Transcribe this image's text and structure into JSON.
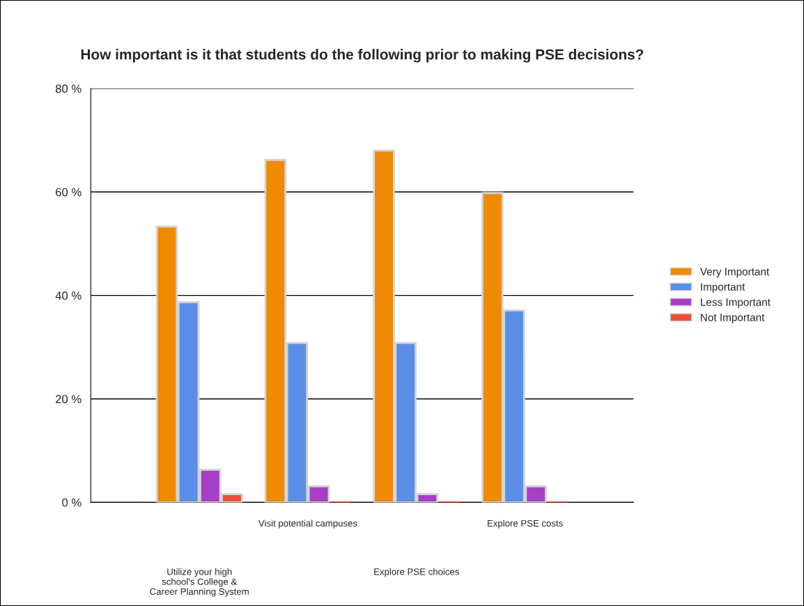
{
  "chart_data": {
    "type": "bar",
    "title": "How important is it that students do the following prior to making PSE decisions?",
    "categories": [
      "Utilize your high\nschool's College &\nCareer Planning System",
      "Visit potential campuses",
      "Explore PSE choices",
      "Explore PSE costs"
    ],
    "series": [
      {
        "name": "Very Important",
        "color": "#f08a00",
        "values": [
          53.3,
          66.2,
          68.0,
          59.8
        ]
      },
      {
        "name": "Important",
        "color": "#5b8ee6",
        "values": [
          38.7,
          30.8,
          30.8,
          37.1
        ]
      },
      {
        "name": "Less Important",
        "color": "#a53fc6",
        "values": [
          6.3,
          3.1,
          1.6,
          3.1
        ]
      },
      {
        "name": "Not Important",
        "color": "#e8503a",
        "values": [
          1.6,
          0,
          0,
          0
        ]
      }
    ],
    "ylim": [
      0,
      80
    ],
    "yticks": [
      {
        "value": 0,
        "label": "0 %"
      },
      {
        "value": 20,
        "label": "20 %"
      },
      {
        "value": 40,
        "label": "40 %"
      },
      {
        "value": 60,
        "label": "60 %"
      },
      {
        "value": 80,
        "label": "80 %"
      }
    ],
    "grid": "y",
    "legend": "right"
  }
}
